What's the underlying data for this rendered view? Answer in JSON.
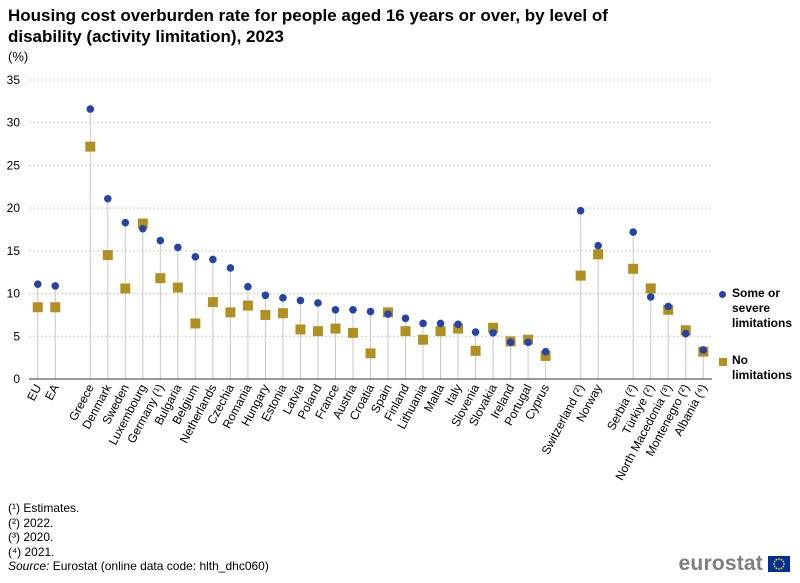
{
  "chart_data": {
    "type": "scatter",
    "title": "Housing cost overburden rate for people aged 16 years or over, by level of disability (activity limitation), 2023",
    "ylabel": "(%)",
    "xlabel": "",
    "ylim": [
      0,
      35
    ],
    "yticks": [
      0,
      5,
      10,
      15,
      20,
      25,
      30,
      35
    ],
    "grid": true,
    "legend_position": "right",
    "categories": [
      "EU",
      "EA",
      "Greece",
      "Denmark",
      "Sweden",
      "Luxembourg",
      "Germany (¹)",
      "Bulgaria",
      "Belgium",
      "Netherlands",
      "Czechia",
      "Romania",
      "Hungary",
      "Estonia",
      "Latvia",
      "Poland",
      "France",
      "Austria",
      "Croatia",
      "Spain",
      "Finland",
      "Lithuania",
      "Malta",
      "Italy",
      "Slovenia",
      "Slovakia",
      "Ireland",
      "Portugal",
      "Cyprus",
      "Switzerland (²)",
      "Norway",
      "Serbia (²)",
      "Türkiye (²)",
      "North Macedonia (³)",
      "Montenegro (²)",
      "Albania (⁴)"
    ],
    "groups": [
      2,
      27,
      2,
      6
    ],
    "series": [
      {
        "name": "Some or severe limitations",
        "marker": "circle",
        "color": "#2644a6",
        "values": [
          11.1,
          10.9,
          31.6,
          21.1,
          18.3,
          17.6,
          16.2,
          15.4,
          14.3,
          14.0,
          13.0,
          10.8,
          9.8,
          9.5,
          9.2,
          8.9,
          8.1,
          8.1,
          7.9,
          7.6,
          7.1,
          6.5,
          6.5,
          6.4,
          5.5,
          5.4,
          4.3,
          4.3,
          3.2,
          19.7,
          15.6,
          17.2,
          9.6,
          8.5,
          5.3,
          3.4
        ]
      },
      {
        "name": "No limitations",
        "marker": "square",
        "color": "#b09120",
        "values": [
          8.4,
          8.4,
          27.2,
          14.5,
          10.6,
          18.2,
          11.8,
          10.7,
          6.5,
          9.0,
          7.8,
          8.6,
          7.5,
          7.7,
          5.8,
          5.6,
          5.9,
          5.4,
          3.0,
          7.8,
          5.6,
          4.6,
          5.6,
          5.9,
          3.3,
          6.0,
          4.4,
          4.6,
          2.7,
          12.1,
          14.6,
          12.9,
          10.6,
          8.1,
          5.7,
          3.2
        ]
      }
    ]
  },
  "legend": {
    "series1_label": "Some or severe limitations",
    "series2_label": "No limitations"
  },
  "footnotes": [
    "(¹) Estimates.",
    "(²) 2022.",
    "(³) 2020.",
    "(⁴) 2021."
  ],
  "source": {
    "label": "Source:",
    "text": "Eurostat (online data code: hlth_dhc060)"
  },
  "logo_text": "eurostat",
  "colors": {
    "series1": "#2644a6",
    "series2": "#b09120",
    "grid": "#cccccc",
    "stem": "#c8c8c8",
    "axis": "#333333"
  }
}
